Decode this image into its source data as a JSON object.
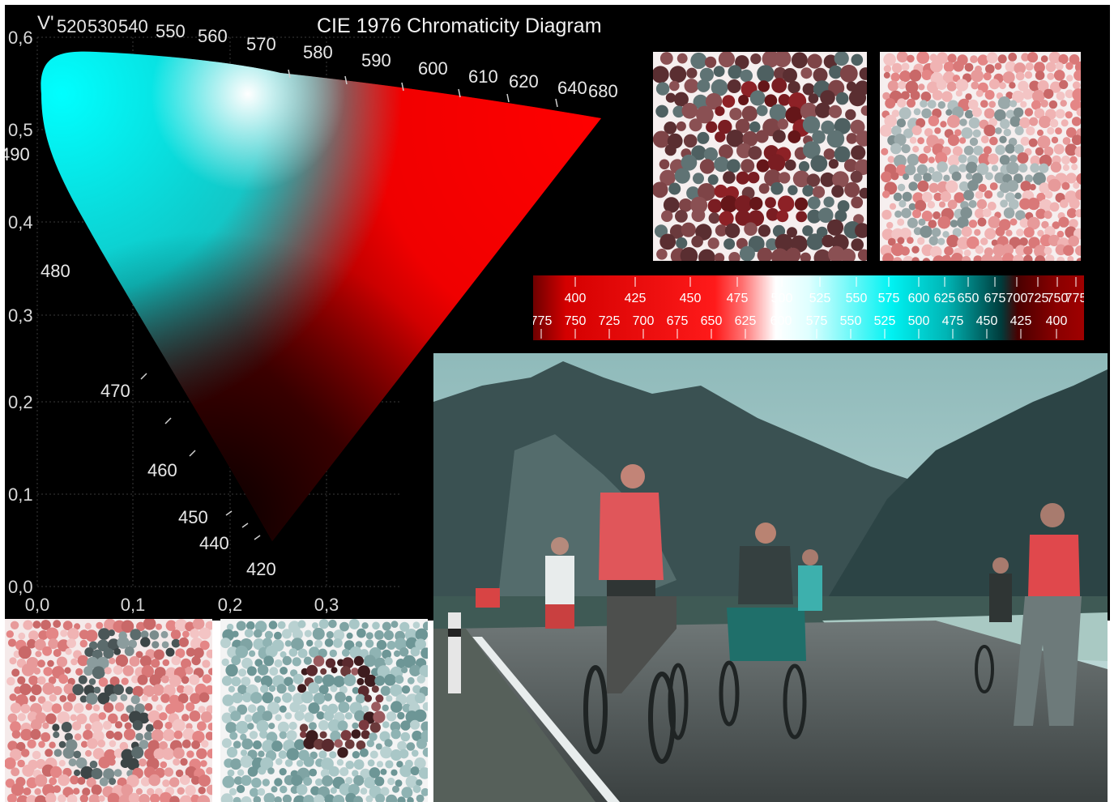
{
  "diagram": {
    "title": "CIE 1976 Chromaticity Diagram",
    "v_axis_label": "V'",
    "x_ticks": [
      "0,0",
      "0,1",
      "0,2",
      "0,3"
    ],
    "y_ticks": [
      "0,0",
      "0,1",
      "0,2",
      "0,3",
      "0,4",
      "0,5",
      "0,6"
    ],
    "wavelength_labels": [
      "520",
      "530",
      "540",
      "550",
      "560",
      "570",
      "580",
      "590",
      "600",
      "610",
      "620",
      "640",
      "680",
      "490",
      "480",
      "470",
      "460",
      "450",
      "440",
      "420"
    ]
  },
  "spectrum_bar": {
    "top_row": [
      "400",
      "425",
      "450",
      "475",
      "500",
      "525",
      "550",
      "575",
      "600",
      "625",
      "650",
      "675",
      "700",
      "725",
      "750",
      "775"
    ],
    "bottom_row": [
      "775",
      "750",
      "725",
      "700",
      "675",
      "650",
      "625",
      "600",
      "575",
      "550",
      "525",
      "500",
      "475",
      "450",
      "425",
      "400"
    ]
  },
  "colors": {
    "background": "#000000",
    "red": "#ff0000",
    "cyan": "#00ffff",
    "dark_red": "#6a0000",
    "plate_pink": "#e08a8a",
    "plate_gray": "#5e6f70"
  },
  "plates": {
    "plate_bl1_numeral": "5",
    "plate_tr1_numeral": "",
    "plate_tr2_numeral": "",
    "plate_bl2_numeral": ""
  },
  "photo": {
    "icon": "road-cyclists-photo-icon"
  }
}
